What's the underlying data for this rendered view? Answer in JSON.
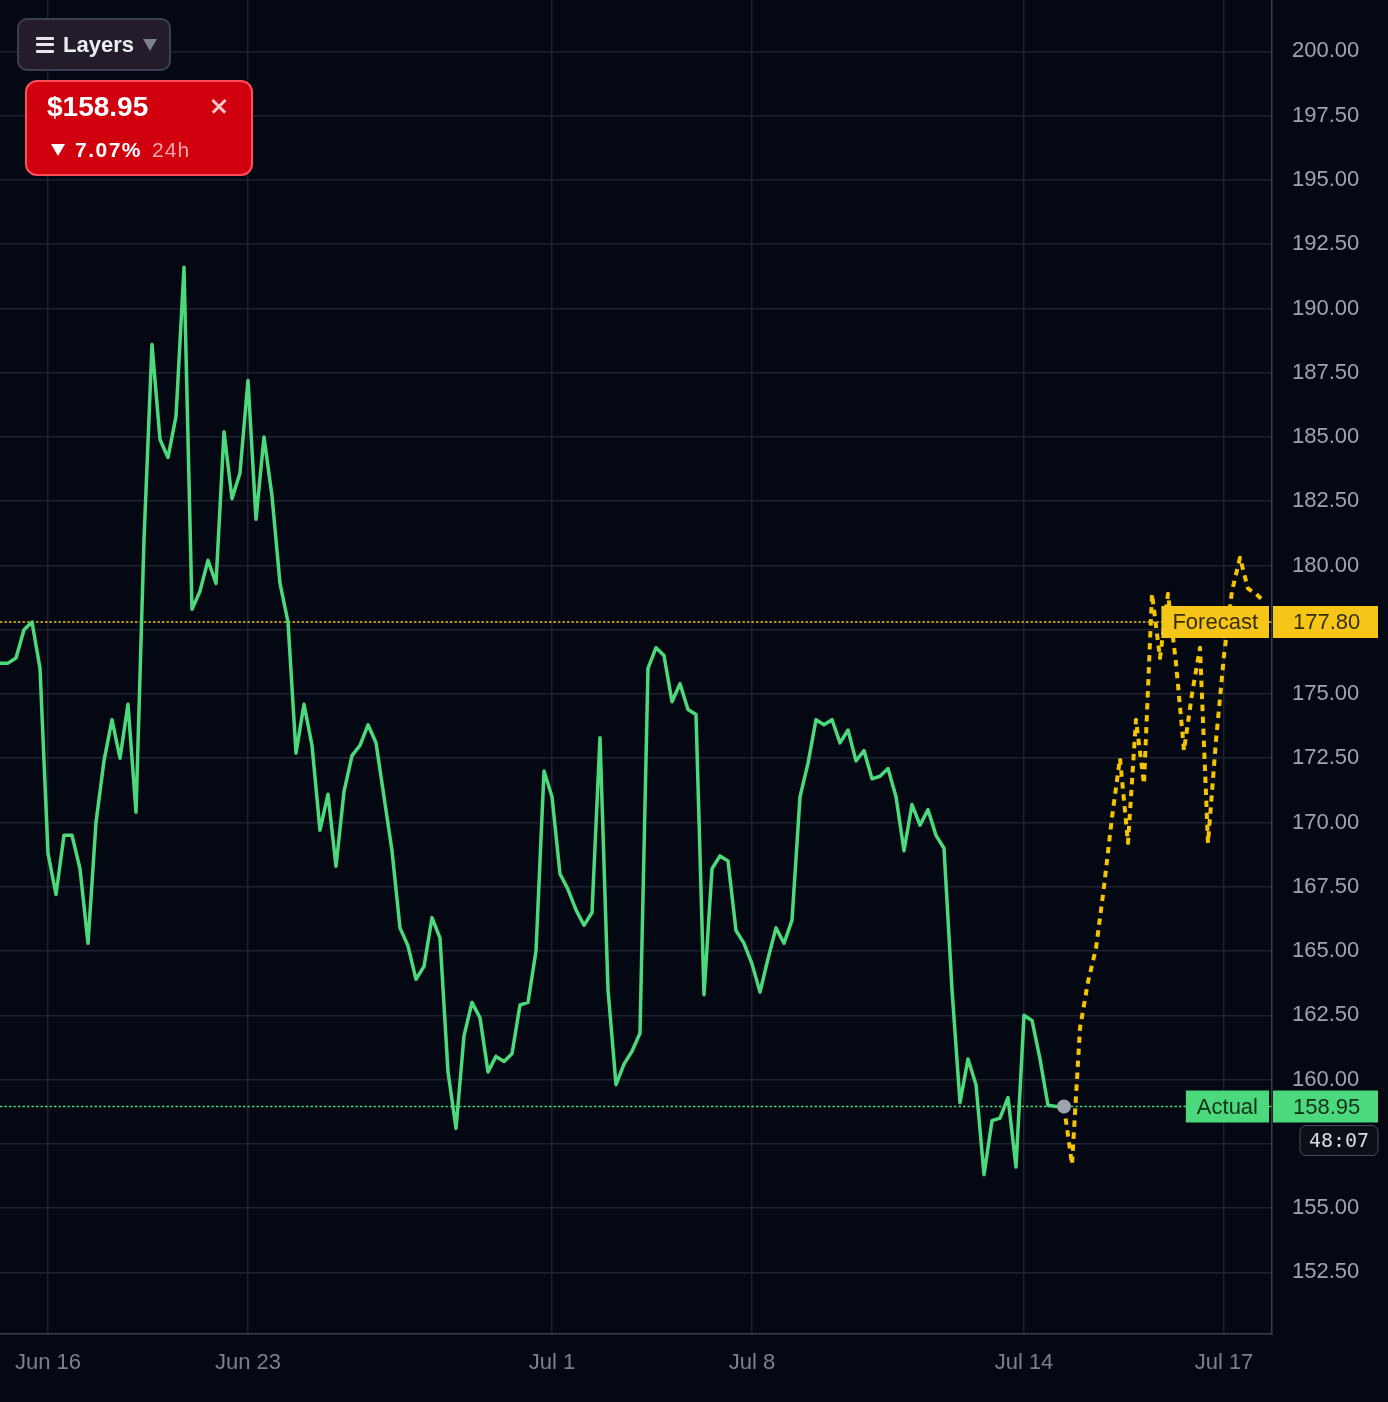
{
  "chart_data": {
    "type": "line",
    "categories": [
      null,
      null,
      null,
      null,
      null,
      null,
      "Jun 16",
      null,
      null,
      null,
      null,
      null,
      null,
      null,
      null,
      null,
      null,
      null,
      null,
      null,
      null,
      null,
      null,
      null,
      null,
      null,
      null,
      null,
      null,
      null,
      null,
      "Jun 23",
      null,
      null,
      null,
      null,
      null,
      null,
      null,
      null,
      null,
      null,
      null,
      null,
      null,
      null,
      null,
      null,
      null,
      null,
      null,
      null,
      null,
      null,
      null,
      null,
      null,
      null,
      null,
      null,
      null,
      null,
      null,
      null,
      null,
      null,
      null,
      null,
      null,
      "Jul 1",
      null,
      null,
      null,
      null,
      null,
      null,
      null,
      null,
      null,
      null,
      null,
      null,
      null,
      null,
      null,
      null,
      null,
      null,
      null,
      null,
      null,
      null,
      null,
      null,
      "Jul 8",
      null,
      null,
      null,
      null,
      null,
      null,
      null,
      null,
      null,
      null,
      null,
      null,
      null,
      null,
      null,
      null,
      null,
      null,
      null,
      null,
      null,
      null,
      null,
      null,
      null,
      null,
      null,
      null,
      null,
      null,
      null,
      null,
      null,
      "Jul 14",
      null,
      null,
      null,
      null,
      null,
      null,
      null,
      null,
      null,
      null,
      null,
      null,
      null,
      null,
      null,
      null,
      null,
      null,
      null,
      null,
      null,
      null,
      null,
      null,
      "Jul 17",
      null,
      null,
      null,
      null,
      null,
      null
    ],
    "series": [
      {
        "color": "#4cd97b",
        "values": [
          176.2,
          176.2,
          176.4,
          177.5,
          177.8,
          176.0,
          168.8,
          167.2,
          169.5,
          169.5,
          168.2,
          165.3,
          170.0,
          172.4,
          174.0,
          172.5,
          174.6,
          170.4,
          181.0,
          188.6,
          184.9,
          184.2,
          185.8,
          191.6,
          178.3,
          179.0,
          180.2,
          179.3,
          185.2,
          182.6,
          183.6,
          187.2,
          181.8,
          185.0,
          182.7,
          179.3,
          177.8,
          172.7,
          174.6,
          173.0,
          169.7,
          171.1,
          168.3,
          171.2,
          172.6,
          173.0,
          173.8,
          173.1,
          171.0,
          168.9,
          165.9,
          165.2,
          163.9,
          164.4,
          166.3,
          165.5,
          160.3,
          158.1,
          161.7,
          163.0,
          162.4,
          160.3,
          160.9,
          160.7,
          161.0,
          162.9,
          163.0,
          165.0,
          172.0,
          171.0,
          168.0,
          167.4,
          166.6,
          166.0,
          166.5,
          173.3,
          163.5,
          159.8,
          160.6,
          161.1,
          161.8,
          176.0,
          176.8,
          176.5,
          174.7,
          175.4,
          174.4,
          174.2,
          163.3,
          168.2,
          168.7,
          168.5,
          165.8,
          165.3,
          164.5,
          163.4,
          164.7,
          165.9,
          165.3,
          166.2,
          171.0,
          172.3,
          174.0,
          173.8,
          174.0,
          173.1,
          173.6,
          172.4,
          172.8,
          171.7,
          171.8,
          172.1,
          171.0,
          168.9,
          170.7,
          169.9,
          170.5,
          169.5,
          169.0,
          163.5,
          159.1,
          160.8,
          159.8,
          156.3,
          158.4,
          158.5,
          159.3,
          156.6,
          162.5,
          162.3,
          160.8,
          159.0,
          158.95,
          158.95,
          null,
          null,
          null,
          null,
          null,
          null,
          null,
          null,
          null,
          null,
          null,
          null,
          null,
          null,
          null,
          null,
          null,
          null,
          null,
          null,
          null,
          null,
          null,
          null,
          null,
          null
        ]
      },
      {
        "color": "#f5c400",
        "line_style": "dotted",
        "values": [
          null,
          null,
          null,
          null,
          null,
          null,
          null,
          null,
          null,
          null,
          null,
          null,
          null,
          null,
          null,
          null,
          null,
          null,
          null,
          null,
          null,
          null,
          null,
          null,
          null,
          null,
          null,
          null,
          null,
          null,
          null,
          null,
          null,
          null,
          null,
          null,
          null,
          null,
          null,
          null,
          null,
          null,
          null,
          null,
          null,
          null,
          null,
          null,
          null,
          null,
          null,
          null,
          null,
          null,
          null,
          null,
          null,
          null,
          null,
          null,
          null,
          null,
          null,
          null,
          null,
          null,
          null,
          null,
          null,
          null,
          null,
          null,
          null,
          null,
          null,
          null,
          null,
          null,
          null,
          null,
          null,
          null,
          null,
          null,
          null,
          null,
          null,
          null,
          null,
          null,
          null,
          null,
          null,
          null,
          null,
          null,
          null,
          null,
          null,
          null,
          null,
          null,
          null,
          null,
          null,
          null,
          null,
          null,
          null,
          null,
          null,
          null,
          null,
          null,
          null,
          null,
          null,
          null,
          null,
          null,
          null,
          null,
          null,
          null,
          null,
          null,
          null,
          null,
          null,
          null,
          null,
          null,
          null,
          158.95,
          156.7,
          162.0,
          163.8,
          165.1,
          167.5,
          170.2,
          172.5,
          169.2,
          174.0,
          171.5,
          178.9,
          176.4,
          178.9,
          176.2,
          172.8,
          175.0,
          176.8,
          169.2,
          173.2,
          176.5,
          179.0,
          180.3,
          179.1,
          178.9,
          178.6,
          null
        ]
      },
      {
        "type": "scatter",
        "marker": "circle",
        "color": "#9ea2ad",
        "values": [
          null,
          null,
          null,
          null,
          null,
          null,
          null,
          null,
          null,
          null,
          null,
          null,
          null,
          null,
          null,
          null,
          null,
          null,
          null,
          null,
          null,
          null,
          null,
          null,
          null,
          null,
          null,
          null,
          null,
          null,
          null,
          null,
          null,
          null,
          null,
          null,
          null,
          null,
          null,
          null,
          null,
          null,
          null,
          null,
          null,
          null,
          null,
          null,
          null,
          null,
          null,
          null,
          null,
          null,
          null,
          null,
          null,
          null,
          null,
          null,
          null,
          null,
          null,
          null,
          null,
          null,
          null,
          null,
          null,
          null,
          null,
          null,
          null,
          null,
          null,
          null,
          null,
          null,
          null,
          null,
          null,
          null,
          null,
          null,
          null,
          null,
          null,
          null,
          null,
          null,
          null,
          null,
          null,
          null,
          null,
          null,
          null,
          null,
          null,
          null,
          null,
          null,
          null,
          null,
          null,
          null,
          null,
          null,
          null,
          null,
          null,
          null,
          null,
          null,
          null,
          null,
          null,
          null,
          null,
          null,
          null,
          null,
          null,
          null,
          null,
          null,
          null,
          null,
          null,
          null,
          null,
          null,
          null,
          158.95,
          null,
          null,
          null,
          null,
          null,
          null,
          null,
          null,
          null,
          null,
          null,
          null,
          null,
          null,
          null,
          null,
          null,
          null,
          null,
          null,
          null,
          null,
          null,
          null,
          null,
          null
        ]
      }
    ],
    "ylim": [
      150.1,
      202.0
    ],
    "yticks": [
      {
        "value": 152.5,
        "label": "152.50"
      },
      {
        "value": 155,
        "label": "155.00"
      },
      {
        "value": 157.5,
        "label": null
      },
      {
        "value": 160,
        "label": "160.00"
      },
      {
        "value": 162.5,
        "label": "162.50"
      },
      {
        "value": 165,
        "label": "165.00"
      },
      {
        "value": 167.5,
        "label": "167.50"
      },
      {
        "value": 170,
        "label": "170.00"
      },
      {
        "value": 172.5,
        "label": "172.50"
      },
      {
        "value": 175,
        "label": "175.00"
      },
      {
        "value": 177.5,
        "label": null
      },
      {
        "value": 180,
        "label": "180.00"
      },
      {
        "value": 182.5,
        "label": "182.50"
      },
      {
        "value": 185,
        "label": "185.00"
      },
      {
        "value": 187.5,
        "label": "187.50"
      },
      {
        "value": 190,
        "label": "190.00"
      },
      {
        "value": 192.5,
        "label": "192.50"
      },
      {
        "value": 195,
        "label": "195.00"
      },
      {
        "value": 197.5,
        "label": "197.50"
      },
      {
        "value": 200,
        "label": "200.00"
      }
    ],
    "grid": true,
    "legend": false,
    "marker": "none",
    "ref_lines": [
      {
        "axis": "y",
        "value": 177.8,
        "label": "Forecast",
        "color": "#f5c518",
        "line_style": "dotted"
      },
      {
        "axis": "y",
        "value": 158.95,
        "label": "Actual",
        "color": "#4cd97b",
        "line_style": "dotted"
      }
    ],
    "annotations": [
      "Layers",
      "$158.95",
      "7.07%",
      "24h",
      "48:07",
      "177.80",
      "158.95"
    ]
  }
}
